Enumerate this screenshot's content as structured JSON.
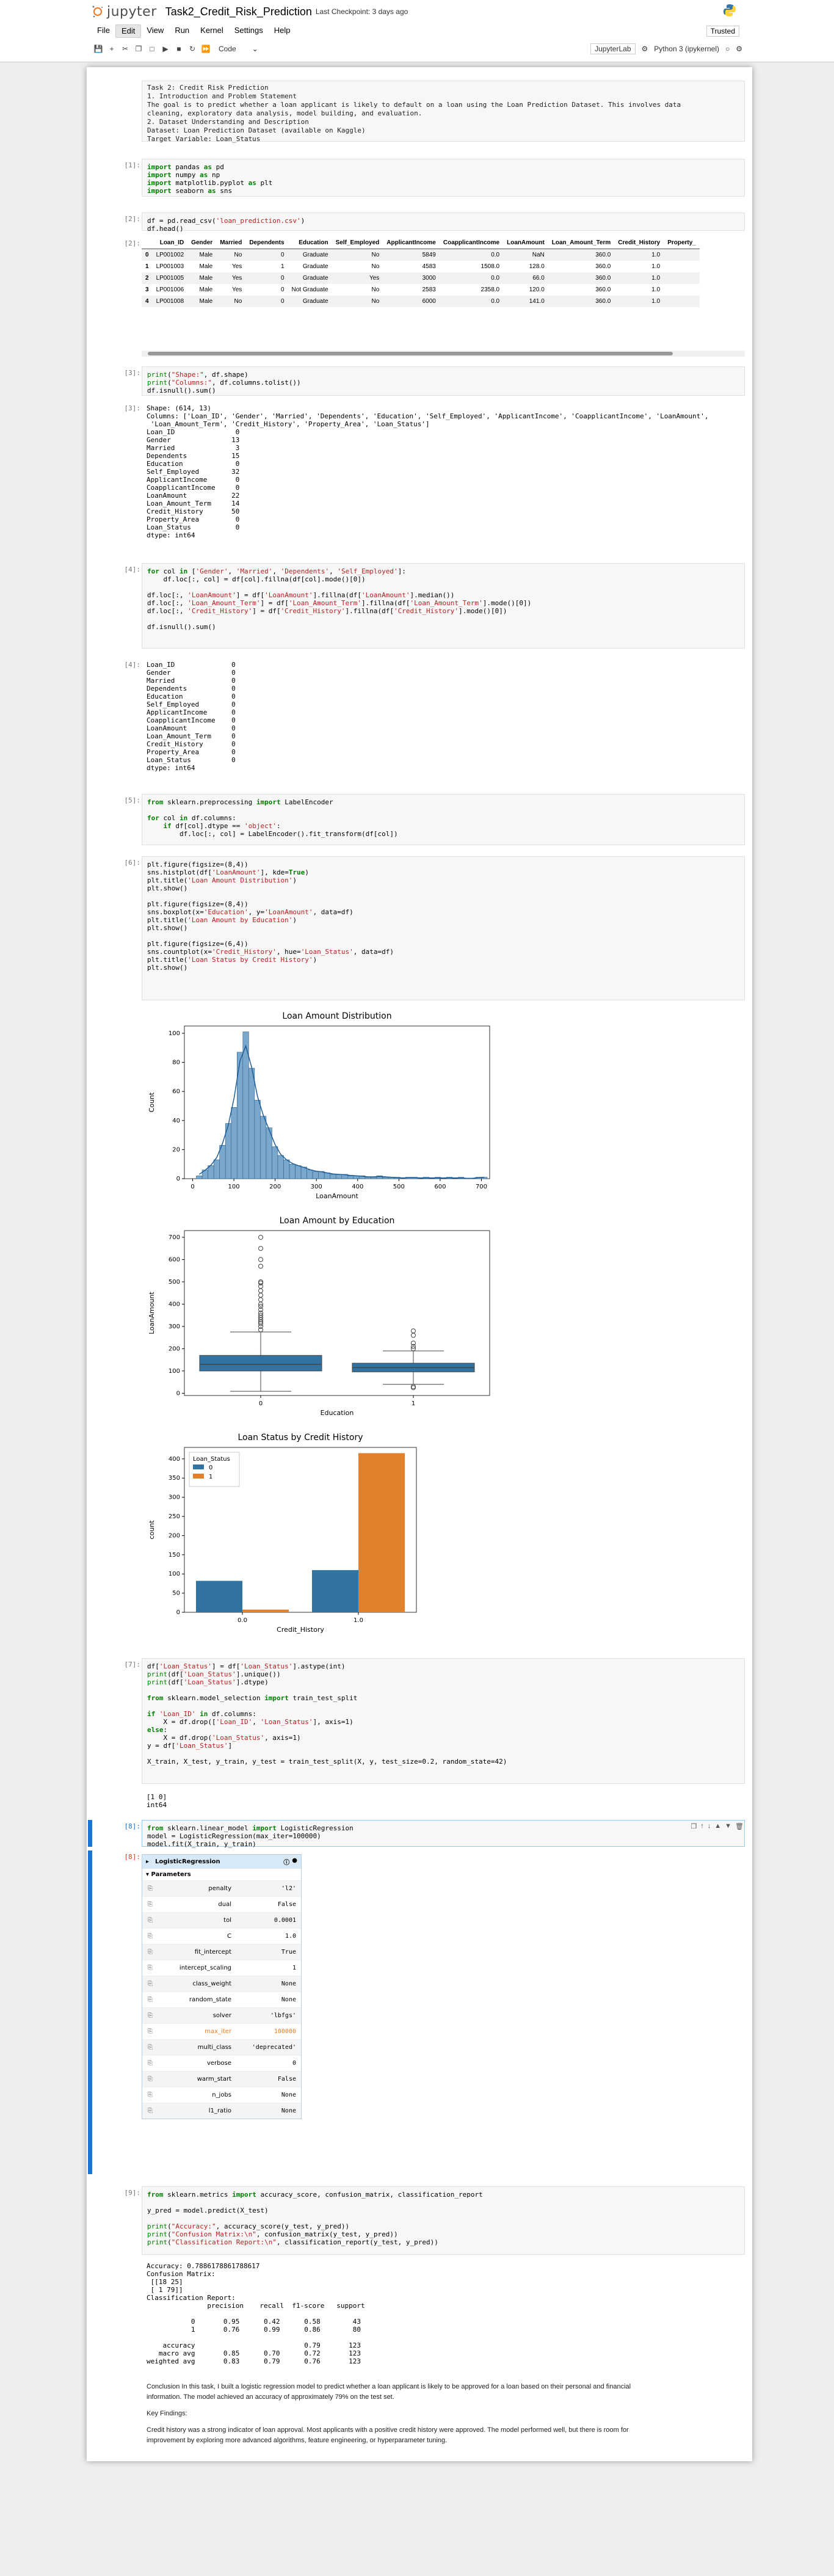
{
  "app": {
    "name": "jupyter",
    "notebook_title": "Task2_Credit_Risk_Prediction",
    "checkpoint": "Last Checkpoint: 3 days ago",
    "trusted": "Trusted"
  },
  "menu": [
    "File",
    "Edit",
    "View",
    "Run",
    "Kernel",
    "Settings",
    "Help"
  ],
  "toolbar": {
    "cell_type": "Code",
    "kernel_label": "JupyterLab",
    "kernel_name": "Python 3 (ipykernel)"
  },
  "colors": {
    "accent": "#1976d2",
    "bar": "#3274a1",
    "orange": "#e1812c"
  },
  "cells": {
    "md1": [
      "Task 2: Credit Risk Prediction",
      "1. Introduction and Problem Statement",
      "The goal is to predict whether a loan applicant is likely to default on a loan using the Loan Prediction Dataset. This involves data",
      "cleaning, exploratory data analysis, model building, and evaluation.",
      "2. Dataset Understanding and Description",
      "Dataset: Loan Prediction Dataset (available on Kaggle)",
      "Target Variable: Loan_Status"
    ],
    "p1": "[1]:",
    "p2": "[2]:",
    "p3": "[3]:",
    "p4": "[4]:",
    "p5": "[5]:",
    "p6": "[6]:",
    "p7": "[7]:",
    "p8": "[8]:",
    "p9": "[9]:",
    "df": {
      "columns": [
        "",
        "Loan_ID",
        "Gender",
        "Married",
        "Dependents",
        "Education",
        "Self_Employed",
        "ApplicantIncome",
        "CoapplicantIncome",
        "LoanAmount",
        "Loan_Amount_Term",
        "Credit_History",
        "Property_"
      ],
      "rows": [
        [
          "0",
          "LP001002",
          "Male",
          "No",
          "0",
          "Graduate",
          "No",
          "5849",
          "0.0",
          "NaN",
          "360.0",
          "1.0",
          ""
        ],
        [
          "1",
          "LP001003",
          "Male",
          "Yes",
          "1",
          "Graduate",
          "No",
          "4583",
          "1508.0",
          "128.0",
          "360.0",
          "1.0",
          ""
        ],
        [
          "2",
          "LP001005",
          "Male",
          "Yes",
          "0",
          "Graduate",
          "Yes",
          "3000",
          "0.0",
          "66.0",
          "360.0",
          "1.0",
          ""
        ],
        [
          "3",
          "LP001006",
          "Male",
          "Yes",
          "0",
          "Not Graduate",
          "No",
          "2583",
          "2358.0",
          "120.0",
          "360.0",
          "1.0",
          ""
        ],
        [
          "4",
          "LP001008",
          "Male",
          "No",
          "0",
          "Graduate",
          "No",
          "6000",
          "0.0",
          "141.0",
          "360.0",
          "1.0",
          ""
        ]
      ]
    },
    "out3": "Shape: (614, 13)\nColumns: ['Loan_ID', 'Gender', 'Married', 'Dependents', 'Education', 'Self_Employed', 'ApplicantIncome', 'CoapplicantIncome', 'LoanAmount',\n 'Loan_Amount_Term', 'Credit_History', 'Property_Area', 'Loan_Status']\nLoan_ID               0\nGender               13\nMarried               3\nDependents           15\nEducation             0\nSelf_Employed        32\nApplicantIncome       0\nCoapplicantIncome     0\nLoanAmount           22\nLoan_Amount_Term     14\nCredit_History       50\nProperty_Area         0\nLoan_Status           0\ndtype: int64",
    "out4": "Loan_ID              0\nGender               0\nMarried              0\nDependents           0\nEducation            0\nSelf_Employed        0\nApplicantIncome      0\nCoapplicantIncome    0\nLoanAmount           0\nLoan_Amount_Term     0\nCredit_History       0\nProperty_Area        0\nLoan_Status          0\ndtype: int64",
    "out7": "[1 0]\nint64",
    "lr": {
      "title": "LogisticRegression",
      "params_header": "Parameters",
      "params": [
        [
          "penalty",
          "'l2'"
        ],
        [
          "dual",
          "False"
        ],
        [
          "tol",
          "0.0001"
        ],
        [
          "C",
          "1.0"
        ],
        [
          "fit_intercept",
          "True"
        ],
        [
          "intercept_scaling",
          "1"
        ],
        [
          "class_weight",
          "None"
        ],
        [
          "random_state",
          "None"
        ],
        [
          "solver",
          "'lbfgs'"
        ],
        [
          "max_iter",
          "100000"
        ],
        [
          "multi_class",
          "'deprecated'"
        ],
        [
          "verbose",
          "0"
        ],
        [
          "warm_start",
          "False"
        ],
        [
          "n_jobs",
          "None"
        ],
        [
          "l1_ratio",
          "None"
        ]
      ]
    },
    "out9": "Accuracy: 0.7886178861788617\nConfusion Matrix:\n [[18 25]\n [ 1 79]]\nClassification Report:\n               precision    recall  f1-score   support\n\n           0       0.95      0.42      0.58        43\n           1       0.76      0.99      0.86        80\n\n    accuracy                           0.79       123\n   macro avg       0.85      0.70      0.72       123\nweighted avg       0.83      0.79      0.76       123",
    "conclusion": [
      "Conclusion In this task, I built a logistic regression model to predict whether a loan applicant is likely to be approved for a loan based on their personal and financial",
      "information. The model achieved an accuracy of approximately 79% on the test set.",
      "Key Findings:",
      "Credit history was a strong indicator of loan approval. Most applicants with a positive credit history were approved. The model performed well, but there is room for",
      "improvement by exploring more advanced algorithms, feature engineering, or hyperparameter tuning."
    ]
  },
  "chart_data": [
    {
      "type": "bar",
      "title": "Loan Amount Distribution",
      "xlabel": "LoanAmount",
      "ylabel": "Count",
      "xlim": [
        -20,
        720
      ],
      "ylim": [
        0,
        105
      ],
      "xticks": [
        0,
        100,
        200,
        300,
        400,
        500,
        600,
        700
      ],
      "yticks": [
        0,
        20,
        40,
        60,
        80,
        100
      ],
      "bin_start": 9,
      "bin_width": 14.1,
      "values": [
        2,
        6,
        9,
        13,
        23,
        38,
        49,
        87,
        101,
        76,
        54,
        43,
        35,
        22,
        16,
        13,
        10,
        9,
        8,
        6,
        5,
        5,
        4,
        3,
        3,
        3,
        2,
        2,
        2,
        1,
        1,
        2,
        1,
        1,
        1,
        0,
        1,
        1,
        0,
        1,
        0,
        1,
        0,
        1,
        0,
        1,
        0,
        0,
        1,
        1
      ]
    },
    {
      "type": "box",
      "title": "Loan Amount by Education",
      "xlabel": "Education",
      "ylabel": "LoanAmount",
      "categories": [
        "0",
        "1"
      ],
      "ylim": [
        -10,
        730
      ],
      "yticks": [
        0,
        100,
        200,
        300,
        400,
        500,
        600,
        700
      ],
      "boxes": [
        {
          "whislo": 9,
          "q1": 100,
          "med": 130,
          "q3": 170,
          "whishi": 275,
          "fliers": [
            285,
            300,
            312,
            320,
            330,
            340,
            350,
            360,
            375,
            390,
            400,
            420,
            440,
            460,
            480,
            495,
            500,
            570,
            600,
            650,
            700
          ]
        },
        {
          "whislo": 40,
          "q1": 96,
          "med": 115,
          "q3": 135,
          "whishi": 190,
          "fliers": [
            25,
            30,
            200,
            210,
            225,
            260,
            280
          ]
        }
      ]
    },
    {
      "type": "bar",
      "title": "Loan Status by Credit History",
      "xlabel": "Credit_History",
      "ylabel": "count",
      "categories": [
        "0.0",
        "1.0"
      ],
      "ylim": [
        0,
        430
      ],
      "yticks": [
        0,
        50,
        100,
        150,
        200,
        250,
        300,
        350,
        400
      ],
      "legend": {
        "title": "Loan_Status",
        "placement": "top-left"
      },
      "series": [
        {
          "name": "0",
          "values": [
            82,
            110
          ]
        },
        {
          "name": "1",
          "values": [
            7,
            415
          ]
        }
      ]
    }
  ]
}
